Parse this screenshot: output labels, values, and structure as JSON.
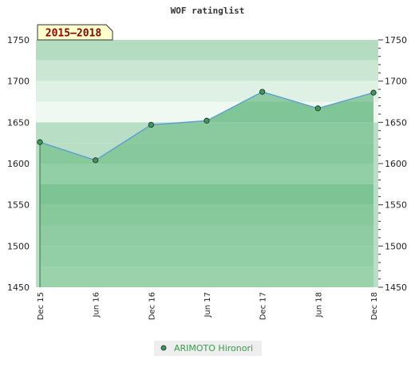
{
  "chart_data": {
    "type": "line",
    "title": "WOF ratinglist",
    "badge": "2015–2018",
    "xlabel": "",
    "ylabel": "",
    "ylim": [
      1450,
      1750
    ],
    "yticks": [
      "1450",
      "1500",
      "1550",
      "1600",
      "1650",
      "1700",
      "1750"
    ],
    "x": [
      "Dec 15",
      "Jun 16",
      "Dec 16",
      "Jun 17",
      "Dec 17",
      "Jun 18",
      "Dec 18"
    ],
    "series": [
      {
        "name": "ARIMOTO Hironori",
        "values": [
          1626,
          1604,
          1647,
          1652,
          1687,
          1667,
          1686
        ]
      }
    ],
    "legend": "bottom-center",
    "colors": {
      "line": "#5b9bd5",
      "marker": "#3a9a5a",
      "legend_text": "#3a9a4a"
    }
  }
}
